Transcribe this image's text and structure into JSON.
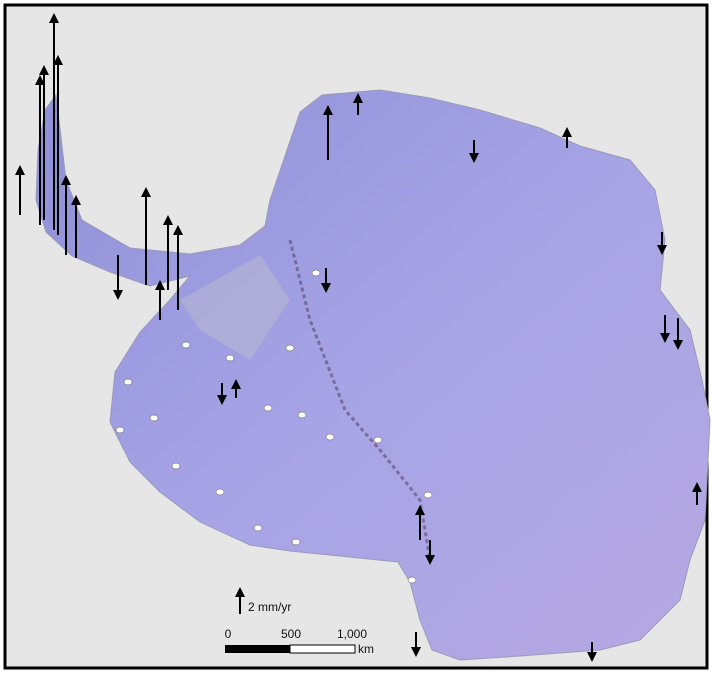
{
  "legend": {
    "label": "2 mm/yr"
  },
  "scale_bar": {
    "labels": [
      "0",
      "500",
      "1,000"
    ],
    "unit": "km"
  }
}
